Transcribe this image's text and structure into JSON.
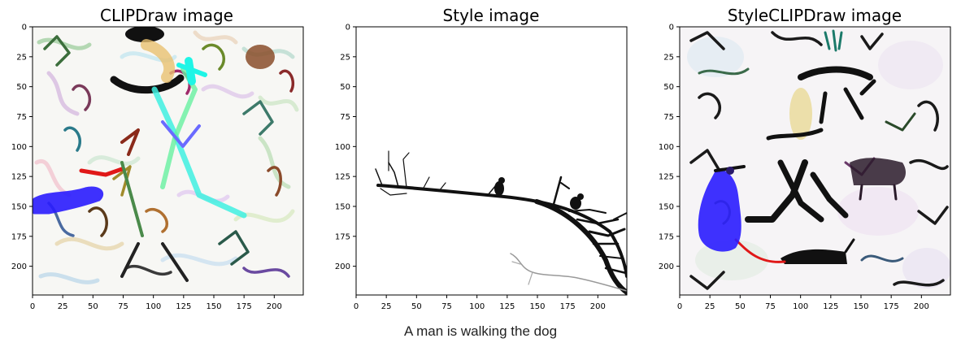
{
  "panels": [
    {
      "title": "CLIPDraw image",
      "xticks": [
        "0",
        "25",
        "50",
        "75",
        "100",
        "125",
        "150",
        "175",
        "200"
      ],
      "yticks": [
        "0",
        "25",
        "50",
        "75",
        "100",
        "125",
        "150",
        "175",
        "200"
      ]
    },
    {
      "title": "Style image",
      "xticks": [
        "0",
        "25",
        "50",
        "75",
        "100",
        "125",
        "150",
        "175",
        "200"
      ],
      "yticks": [
        "0",
        "25",
        "50",
        "75",
        "100",
        "125",
        "150",
        "175",
        "200"
      ]
    },
    {
      "title": "StyleCLIPDraw image",
      "xticks": [
        "0",
        "25",
        "50",
        "75",
        "100",
        "125",
        "150",
        "175",
        "200"
      ],
      "yticks": [
        "0",
        "25",
        "50",
        "75",
        "100",
        "125",
        "150",
        "175",
        "200"
      ]
    }
  ],
  "caption": "A man is walking the dog",
  "colors": {
    "ink": "#111111",
    "accent_blue": "#2a1cff",
    "accent_cyan": "#1ff5e6",
    "accent_red": "#e01818",
    "accent_brown": "#8a4d2a",
    "accent_yellow": "#ffd86a"
  }
}
